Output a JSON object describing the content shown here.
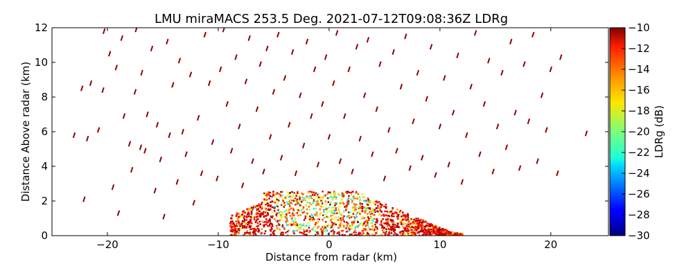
{
  "chart_data": {
    "type": "heatmap",
    "title": "LMU miraMACS 253.5 Deg. 2021-07-12T09:08:36Z  LDRg",
    "xlabel": "Distance from radar (km)",
    "ylabel": "Distance Above radar  (km)",
    "xlim": [
      -25,
      25.2
    ],
    "ylim": [
      0,
      12
    ],
    "x_ticks": [
      -20,
      -10,
      0,
      10,
      20
    ],
    "x_tick_labels": [
      "−20",
      "−10",
      "0",
      "10",
      "20"
    ],
    "y_ticks": [
      0,
      2,
      4,
      6,
      8,
      10,
      12
    ],
    "y_tick_labels": [
      "0",
      "2",
      "4",
      "6",
      "8",
      "10",
      "12"
    ],
    "grid": false,
    "colormap": "jet",
    "colorbar": {
      "label": "LDRg (dB)",
      "range": [
        -30,
        -10
      ],
      "ticks": [
        -10,
        -12,
        -14,
        -16,
        -18,
        -20,
        -22,
        -24,
        -26,
        -28,
        -30
      ],
      "tick_labels": [
        "−10",
        "−12",
        "−14",
        "−16",
        "−18",
        "−20",
        "−22",
        "−24",
        "−26",
        "−28",
        "−30"
      ]
    },
    "dense_region": {
      "description_level": "LDRg values mostly -12 to -22 dB",
      "x_range": [
        -9,
        12
      ],
      "y_range": [
        0,
        2.6
      ],
      "core_x_range": [
        -5,
        4
      ],
      "core_y_range": [
        0.3,
        2.5
      ]
    },
    "sparse_echoes": [
      [
        -23,
        5.8
      ],
      [
        -22.3,
        8.5
      ],
      [
        -22.1,
        2.1
      ],
      [
        -21.8,
        5.6
      ],
      [
        -21.5,
        8.8
      ],
      [
        -20.8,
        6.1
      ],
      [
        -20.4,
        8.4
      ],
      [
        -20.3,
        11.8
      ],
      [
        -19.8,
        10.5
      ],
      [
        -19.5,
        2.8
      ],
      [
        -19.2,
        9.7
      ],
      [
        -19,
        1.3
      ],
      [
        -18.7,
        11.4
      ],
      [
        -18.5,
        6.9
      ],
      [
        -18,
        5.3
      ],
      [
        -17.8,
        3.8
      ],
      [
        -17.5,
        8.3
      ],
      [
        -17.4,
        11.9
      ],
      [
        -17,
        5.1
      ],
      [
        -16.9,
        9.4
      ],
      [
        -16.6,
        4.9
      ],
      [
        -16.4,
        7
      ],
      [
        -16,
        10.8
      ],
      [
        -15.7,
        2.6
      ],
      [
        -15.5,
        6.4
      ],
      [
        -15.2,
        4.4
      ],
      [
        -14.9,
        1.1
      ],
      [
        -14.6,
        11.2
      ],
      [
        -14.4,
        5.8
      ],
      [
        -14.1,
        8.7
      ],
      [
        -13.7,
        3.1
      ],
      [
        -13.5,
        10.1
      ],
      [
        -13.2,
        6
      ],
      [
        -12.9,
        4.7
      ],
      [
        -12.5,
        9.3
      ],
      [
        -12.2,
        1.9
      ],
      [
        -11.8,
        6.8
      ],
      [
        -11.5,
        3.6
      ],
      [
        -11.2,
        11.6
      ],
      [
        -10.8,
        8.8
      ],
      [
        -10.5,
        5.4
      ],
      [
        -10.1,
        3.3
      ],
      [
        -9.8,
        9.6
      ],
      [
        -9.5,
        11.9
      ],
      [
        -9.2,
        7.6
      ],
      [
        -8.8,
        4.9
      ],
      [
        -8.4,
        10.3
      ],
      [
        -8.1,
        6.3
      ],
      [
        -7.8,
        2.9
      ],
      [
        -7.5,
        8.9
      ],
      [
        -7.2,
        11.4
      ],
      [
        -6.9,
        4.3
      ],
      [
        -6.5,
        7.3
      ],
      [
        -6.2,
        9.9
      ],
      [
        -5.9,
        3.7
      ],
      [
        -5.6,
        10.8
      ],
      [
        -5.3,
        5.7
      ],
      [
        -5,
        8.3
      ],
      [
        -4.6,
        11.6
      ],
      [
        -4.3,
        4.5
      ],
      [
        -4,
        9.1
      ],
      [
        -3.6,
        6.4
      ],
      [
        -3.3,
        10.6
      ],
      [
        -3,
        3.6
      ],
      [
        -2.6,
        8.1
      ],
      [
        -2.3,
        5.2
      ],
      [
        -2,
        11.2
      ],
      [
        -1.6,
        6.9
      ],
      [
        -1.3,
        9.6
      ],
      [
        -1,
        4.1
      ],
      [
        -0.6,
        7.6
      ],
      [
        -0.3,
        10.3
      ],
      [
        0,
        5.7
      ],
      [
        0.4,
        8.8
      ],
      [
        0.7,
        11.7
      ],
      [
        1,
        4.3
      ],
      [
        1.4,
        6.9
      ],
      [
        1.8,
        9.6
      ],
      [
        2.1,
        3.7
      ],
      [
        2.5,
        10.9
      ],
      [
        2.8,
        5.6
      ],
      [
        3.2,
        8.1
      ],
      [
        3.5,
        11.3
      ],
      [
        3.9,
        4.7
      ],
      [
        4.3,
        7.3
      ],
      [
        4.6,
        9.9
      ],
      [
        5,
        3.3
      ],
      [
        5.4,
        6.1
      ],
      [
        5.8,
        10.6
      ],
      [
        6.1,
        4.9
      ],
      [
        6.5,
        8.6
      ],
      [
        6.9,
        11.5
      ],
      [
        7.3,
        3.9
      ],
      [
        7.6,
        6.6
      ],
      [
        8,
        9.4
      ],
      [
        8.4,
        4.5
      ],
      [
        8.8,
        7.9
      ],
      [
        9.2,
        10.9
      ],
      [
        9.6,
        3.5
      ],
      [
        10,
        6.3
      ],
      [
        10.4,
        9.1
      ],
      [
        10.8,
        4.1
      ],
      [
        11.2,
        7.1
      ],
      [
        11.6,
        10.4
      ],
      [
        12,
        3.1
      ],
      [
        12.4,
        5.8
      ],
      [
        12.8,
        8.6
      ],
      [
        13.2,
        11.7
      ],
      [
        13.6,
        4.7
      ],
      [
        14,
        7.6
      ],
      [
        14.4,
        10.1
      ],
      [
        14.8,
        3.7
      ],
      [
        15.2,
        6.3
      ],
      [
        15.6,
        9.4
      ],
      [
        16,
        5.1
      ],
      [
        16.4,
        11.2
      ],
      [
        16.8,
        7.1
      ],
      [
        17.2,
        3.9
      ],
      [
        17.6,
        9.9
      ],
      [
        18,
        6.6
      ],
      [
        18.4,
        11.6
      ],
      [
        18.8,
        4.3
      ],
      [
        19.2,
        8.1
      ],
      [
        19.6,
        6.1
      ],
      [
        20,
        9.6
      ],
      [
        20.6,
        3.6
      ],
      [
        20.9,
        10.3
      ],
      [
        23.2,
        5.9
      ]
    ]
  }
}
